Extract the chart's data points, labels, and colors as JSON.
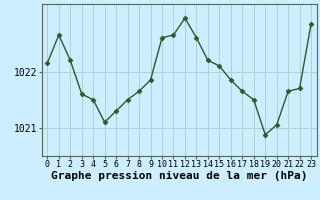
{
  "hours": [
    0,
    1,
    2,
    3,
    4,
    5,
    6,
    7,
    8,
    9,
    10,
    11,
    12,
    13,
    14,
    15,
    16,
    17,
    18,
    19,
    20,
    21,
    22,
    23
  ],
  "pressure": [
    1022.15,
    1022.65,
    1022.2,
    1021.6,
    1021.5,
    1021.1,
    1021.3,
    1021.5,
    1021.65,
    1021.85,
    1022.6,
    1022.65,
    1022.95,
    1022.6,
    1022.2,
    1022.1,
    1021.85,
    1021.65,
    1021.5,
    1020.88,
    1021.05,
    1021.65,
    1021.7,
    1022.85
  ],
  "line_color": "#2d5a27",
  "marker": "D",
  "marker_size": 2.5,
  "bg_color": "#cceeff",
  "grid_color": "#aacccc",
  "xlabel": "Graphe pression niveau de la mer (hPa)",
  "xlabel_fontsize": 8,
  "yticks": [
    1021,
    1022
  ],
  "ylim": [
    1020.5,
    1023.2
  ],
  "xlim": [
    -0.5,
    23.5
  ],
  "xtick_fontsize": 6,
  "ytick_fontsize": 7,
  "linewidth": 1.0
}
